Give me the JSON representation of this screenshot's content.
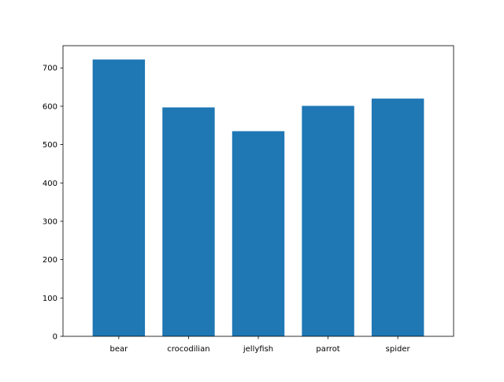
{
  "chart_data": {
    "type": "bar",
    "categories": [
      "bear",
      "crocodilian",
      "jellyfish",
      "parrot",
      "spider"
    ],
    "values": [
      722,
      597,
      535,
      601,
      620
    ],
    "title": "",
    "xlabel": "",
    "ylabel": "",
    "ylim": [
      0,
      758
    ],
    "yticks": [
      0,
      100,
      200,
      300,
      400,
      500,
      600,
      700
    ],
    "grid": false,
    "legend": "none",
    "bar_color": "#1f77b4"
  }
}
